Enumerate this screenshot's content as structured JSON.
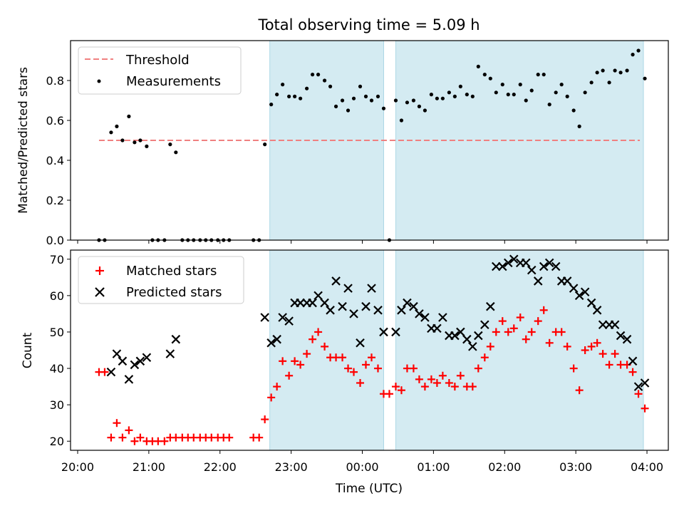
{
  "chart_data": {
    "title": "Total observing time = 5.09 h",
    "xlabel": "Time (UTC)",
    "x_ticks": [
      "20:00",
      "21:00",
      "22:00",
      "23:00",
      "00:00",
      "01:00",
      "02:00",
      "03:00",
      "04:00"
    ],
    "x_range_hours": [
      19.9,
      28.3
    ],
    "shaded_intervals": [
      [
        22.7,
        24.3
      ],
      [
        24.47,
        27.95
      ]
    ],
    "shade_color": "#d4ebf2",
    "panels": [
      {
        "type": "scatter",
        "ylabel": "Matched/Predicted stars",
        "ylim": [
          0,
          1.0
        ],
        "y_ticks": [
          "0.0",
          "0.2",
          "0.4",
          "0.6",
          "0.8"
        ],
        "legend_position": "upper left",
        "threshold": {
          "name": "Threshold",
          "value": 0.5,
          "x_range": [
            20.3,
            27.9
          ],
          "color": "#f08080"
        },
        "series": [
          {
            "name": "Measurements",
            "color": "#000000",
            "x": [
              20.3,
              20.38,
              20.47,
              20.55,
              20.63,
              20.72,
              20.8,
              20.88,
              20.97,
              21.05,
              21.13,
              21.22,
              21.3,
              21.38,
              21.47,
              21.55,
              21.63,
              21.72,
              21.8,
              21.88,
              21.97,
              22.05,
              22.13,
              22.47,
              22.55,
              22.63,
              22.72,
              22.8,
              22.88,
              22.97,
              23.05,
              23.13,
              23.22,
              23.3,
              23.38,
              23.47,
              23.55,
              23.63,
              23.72,
              23.8,
              23.88,
              23.97,
              24.05,
              24.13,
              24.22,
              24.3,
              24.38,
              24.47,
              24.55,
              24.63,
              24.72,
              24.8,
              24.88,
              24.97,
              25.05,
              25.13,
              25.22,
              25.3,
              25.38,
              25.47,
              25.55,
              25.63,
              25.72,
              25.8,
              25.88,
              25.97,
              26.05,
              26.13,
              26.22,
              26.3,
              26.38,
              26.47,
              26.55,
              26.63,
              26.72,
              26.8,
              26.88,
              26.97,
              27.05,
              27.13,
              27.22,
              27.3,
              27.38,
              27.47,
              27.55,
              27.63,
              27.72,
              27.8,
              27.88,
              27.97
            ],
            "y": [
              0.0,
              0.0,
              0.54,
              0.57,
              0.5,
              0.62,
              0.49,
              0.5,
              0.47,
              0.0,
              0.0,
              0.0,
              0.48,
              0.44,
              0.0,
              0.0,
              0.0,
              0.0,
              0.0,
              0.0,
              0.0,
              0.0,
              0.0,
              0.0,
              0.0,
              0.48,
              0.68,
              0.73,
              0.78,
              0.72,
              0.72,
              0.71,
              0.76,
              0.83,
              0.83,
              0.8,
              0.77,
              0.67,
              0.7,
              0.65,
              0.71,
              0.77,
              0.72,
              0.7,
              0.72,
              0.66,
              0.0,
              0.7,
              0.6,
              0.69,
              0.7,
              0.67,
              0.65,
              0.73,
              0.71,
              0.71,
              0.74,
              0.72,
              0.77,
              0.73,
              0.72,
              0.87,
              0.83,
              0.81,
              0.74,
              0.78,
              0.73,
              0.73,
              0.78,
              0.7,
              0.75,
              0.83,
              0.83,
              0.68,
              0.74,
              0.78,
              0.72,
              0.65,
              0.57,
              0.74,
              0.79,
              0.84,
              0.85,
              0.79,
              0.85,
              0.84,
              0.85,
              0.93,
              0.95,
              0.81
            ]
          }
        ]
      },
      {
        "type": "scatter",
        "ylabel": "Count",
        "ylim": [
          17.5,
          72.5
        ],
        "y_ticks": [
          "20",
          "30",
          "40",
          "50",
          "60",
          "70"
        ],
        "legend_position": "upper left",
        "series": [
          {
            "name": "Matched stars",
            "marker": "+",
            "color": "#ff0000",
            "x": [
              20.3,
              20.38,
              20.47,
              20.55,
              20.63,
              20.72,
              20.8,
              20.88,
              20.97,
              21.05,
              21.13,
              21.22,
              21.3,
              21.38,
              21.47,
              21.55,
              21.63,
              21.72,
              21.8,
              21.88,
              21.97,
              22.05,
              22.13,
              22.47,
              22.55,
              22.63,
              22.72,
              22.8,
              22.88,
              22.97,
              23.05,
              23.13,
              23.22,
              23.3,
              23.38,
              23.47,
              23.55,
              23.63,
              23.72,
              23.8,
              23.88,
              23.97,
              24.05,
              24.13,
              24.22,
              24.3,
              24.38,
              24.47,
              24.55,
              24.63,
              24.72,
              24.8,
              24.88,
              24.97,
              25.05,
              25.13,
              25.22,
              25.3,
              25.38,
              25.47,
              25.55,
              25.63,
              25.72,
              25.8,
              25.88,
              25.97,
              26.05,
              26.13,
              26.22,
              26.3,
              26.38,
              26.47,
              26.55,
              26.63,
              26.72,
              26.8,
              26.88,
              26.97,
              27.05,
              27.13,
              27.22,
              27.3,
              27.38,
              27.47,
              27.55,
              27.63,
              27.72,
              27.8,
              27.88,
              27.97
            ],
            "y": [
              39,
              39,
              21,
              25,
              21,
              23,
              20,
              21,
              20,
              20,
              20,
              20,
              21,
              21,
              21,
              21,
              21,
              21,
              21,
              21,
              21,
              21,
              21,
              21,
              21,
              26,
              32,
              35,
              42,
              38,
              42,
              41,
              44,
              48,
              50,
              46,
              43,
              43,
              43,
              40,
              39,
              36,
              41,
              43,
              40,
              33,
              33,
              35,
              34,
              40,
              40,
              37,
              35,
              37,
              36,
              38,
              36,
              35,
              38,
              35,
              35,
              40,
              43,
              46,
              50,
              53,
              50,
              51,
              54,
              48,
              50,
              53,
              56,
              47,
              50,
              50,
              46,
              40,
              34,
              45,
              46,
              47,
              44,
              41,
              44,
              41,
              41,
              39,
              33,
              29
            ]
          },
          {
            "name": "Predicted stars",
            "marker": "x",
            "color": "#000000",
            "x": [
              20.47,
              20.55,
              20.63,
              20.72,
              20.8,
              20.88,
              20.97,
              21.3,
              21.38,
              22.63,
              22.72,
              22.8,
              22.88,
              22.97,
              23.05,
              23.13,
              23.22,
              23.3,
              23.38,
              23.47,
              23.55,
              23.63,
              23.72,
              23.8,
              23.88,
              23.97,
              24.05,
              24.13,
              24.22,
              24.3,
              24.47,
              24.55,
              24.63,
              24.72,
              24.8,
              24.88,
              24.97,
              25.05,
              25.13,
              25.22,
              25.3,
              25.38,
              25.47,
              25.55,
              25.63,
              25.72,
              25.8,
              25.88,
              25.97,
              26.05,
              26.13,
              26.22,
              26.3,
              26.38,
              26.47,
              26.55,
              26.63,
              26.72,
              26.8,
              26.88,
              26.97,
              27.05,
              27.13,
              27.22,
              27.3,
              27.38,
              27.47,
              27.55,
              27.63,
              27.72,
              27.8,
              27.88,
              27.97
            ],
            "y": [
              39,
              44,
              42,
              37,
              41,
              42,
              43,
              44,
              48,
              54,
              47,
              48,
              54,
              53,
              58,
              58,
              58,
              58,
              60,
              58,
              56,
              64,
              57,
              62,
              55,
              47,
              57,
              62,
              56,
              50,
              50,
              56,
              58,
              57,
              55,
              54,
              51,
              51,
              54,
              49,
              49,
              50,
              48,
              46,
              49,
              52,
              57,
              68,
              68,
              69,
              70,
              69,
              69,
              67,
              64,
              68,
              69,
              68,
              64,
              64,
              62,
              60,
              61,
              58,
              56,
              52,
              52,
              52,
              49,
              48,
              42,
              35,
              36
            ]
          }
        ]
      }
    ]
  }
}
